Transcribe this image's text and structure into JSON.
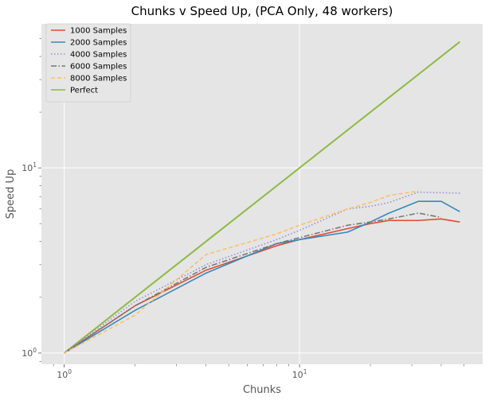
{
  "chart_data": {
    "type": "line",
    "title": "Chunks v Speed Up, (PCA Only, 48 workers)",
    "xlabel": "Chunks",
    "ylabel": "Speed Up",
    "xscale": "log",
    "yscale": "log",
    "xlim": [
      0.8,
      60
    ],
    "ylim": [
      0.87,
      60
    ],
    "grid": true,
    "legend_position": "top-left",
    "x_ticks": [
      {
        "value": 1,
        "base": "10",
        "exp": "0"
      },
      {
        "value": 10,
        "base": "10",
        "exp": "1"
      }
    ],
    "y_ticks": [
      {
        "value": 1,
        "base": "10",
        "exp": "0"
      },
      {
        "value": 10,
        "base": "10",
        "exp": "1"
      }
    ],
    "series": [
      {
        "name": "1000 Samples",
        "color": "#E24A33",
        "dash": "solid",
        "x": [
          1,
          2,
          4,
          8,
          10,
          16,
          20,
          24,
          32,
          40,
          48
        ],
        "y": [
          1.0,
          1.8,
          2.8,
          3.8,
          4.1,
          4.7,
          5.0,
          5.2,
          5.2,
          5.3,
          5.1
        ]
      },
      {
        "name": "2000 Samples",
        "color": "#348ABD",
        "dash": "solid",
        "x": [
          1,
          2,
          4,
          8,
          10,
          16,
          20,
          24,
          32,
          40,
          48
        ],
        "y": [
          1.0,
          1.7,
          2.7,
          3.9,
          4.1,
          4.5,
          5.1,
          5.7,
          6.6,
          6.6,
          5.8
        ]
      },
      {
        "name": "4000 Samples",
        "color": "#988ED5",
        "dash": "dotted",
        "x": [
          1,
          2,
          4,
          8,
          10,
          16,
          20,
          24,
          32,
          48
        ],
        "y": [
          1.0,
          1.9,
          3.0,
          4.1,
          4.6,
          6.0,
          6.2,
          6.5,
          7.4,
          7.3
        ]
      },
      {
        "name": "6000 Samples",
        "color": "#777777",
        "dash": "dashdot",
        "x": [
          1,
          2,
          4,
          8,
          10,
          16,
          20,
          24,
          32,
          40
        ],
        "y": [
          1.0,
          1.8,
          2.9,
          3.9,
          4.2,
          4.9,
          5.1,
          5.3,
          5.7,
          5.4
        ]
      },
      {
        "name": "8000 Samples",
        "color": "#FBC15E",
        "dash": "dashed",
        "x": [
          1,
          2,
          4,
          8,
          10,
          16,
          20,
          24,
          32
        ],
        "y": [
          1.0,
          1.6,
          3.4,
          4.4,
          4.9,
          6.0,
          6.5,
          7.1,
          7.5
        ]
      },
      {
        "name": "Perfect",
        "color": "#8EBA42",
        "dash": "solid",
        "x": [
          1,
          48
        ],
        "y": [
          1,
          48
        ]
      }
    ]
  }
}
